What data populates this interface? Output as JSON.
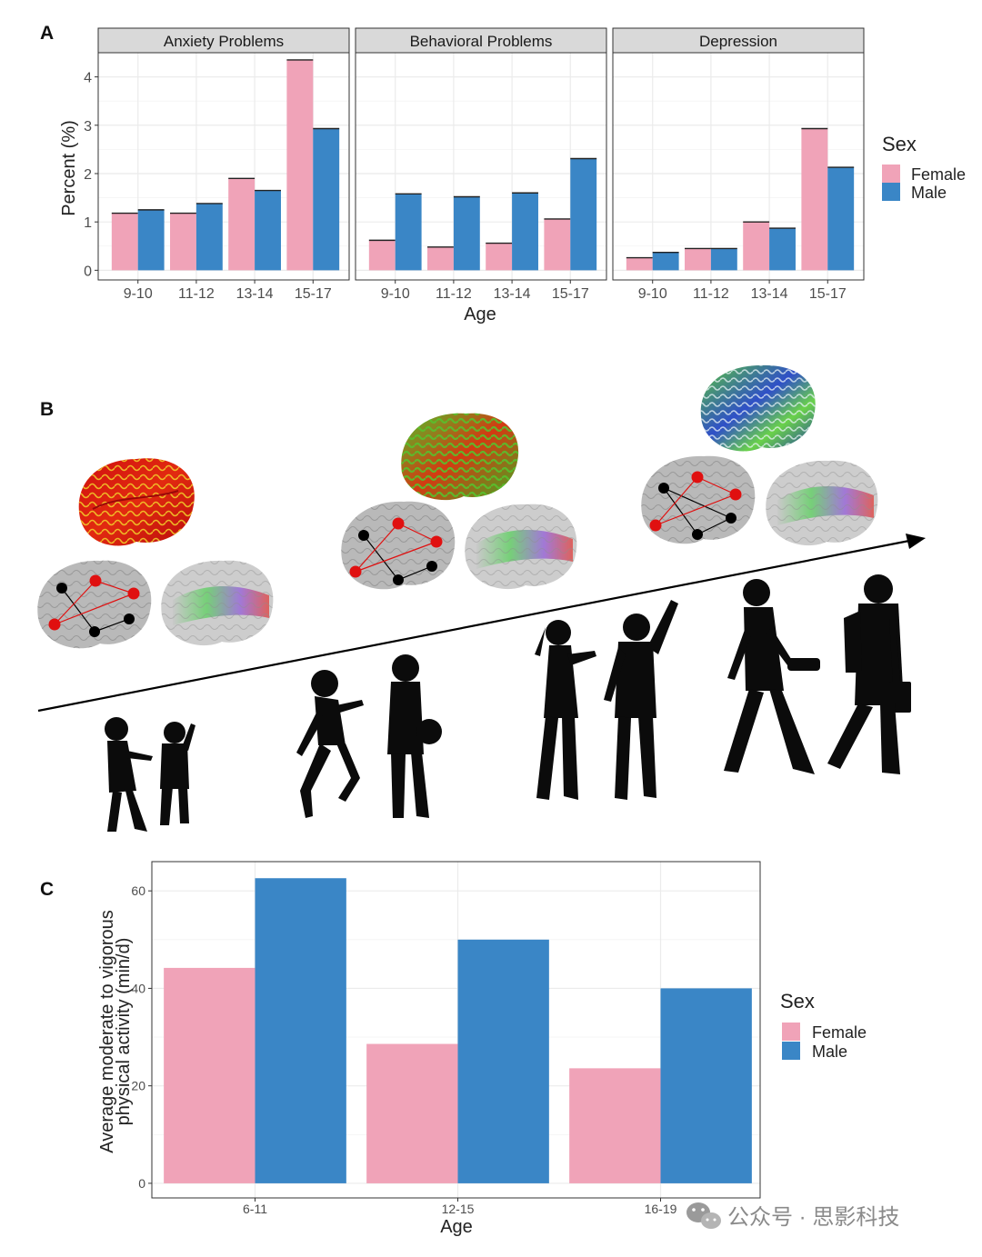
{
  "panels": {
    "a": "A",
    "b": "B",
    "c": "C"
  },
  "colors": {
    "female": "#F0A3B8",
    "male": "#3A86C6",
    "strip_bg": "#D9D9D9",
    "grid": "#EBEBEB"
  },
  "legend": {
    "title": "Sex",
    "female": "Female",
    "male": "Male"
  },
  "panel_b": {
    "timeline": "age progression arrow",
    "brain_surfaces": [
      "red-green cortical surface",
      "green-red cortical surface",
      "blue-green cortical surface"
    ],
    "connectivity_networks": 3,
    "tractography_brains": 3,
    "silhouette_pairs": [
      "child girl and boy",
      "older girl and boy with ball",
      "teen girl and waving boy",
      "young adult woman and man with briefcase"
    ]
  },
  "chart_data": [
    {
      "type": "bar",
      "facets": [
        "Anxiety Problems",
        "Behavioral Problems",
        "Depression"
      ],
      "categories": [
        "9-10",
        "11-12",
        "13-14",
        "15-17"
      ],
      "series_names": [
        "Female",
        "Male"
      ],
      "values": {
        "Anxiety Problems": {
          "Female": [
            1.18,
            1.18,
            1.9,
            4.35
          ],
          "Male": [
            1.25,
            1.38,
            1.65,
            2.93
          ]
        },
        "Behavioral Problems": {
          "Female": [
            0.62,
            0.48,
            0.56,
            1.06
          ],
          "Male": [
            1.58,
            1.52,
            1.6,
            2.31
          ]
        },
        "Depression": {
          "Female": [
            0.26,
            0.45,
            1.0,
            2.93
          ],
          "Male": [
            0.37,
            0.45,
            0.87,
            2.13
          ]
        }
      },
      "xlabel": "Age",
      "ylabel": "Percent (%)",
      "ylim": [
        -0.2,
        4.5
      ],
      "yticks": [
        0,
        1,
        2,
        3,
        4
      ],
      "grid": true,
      "legend": "right"
    },
    {
      "type": "bar",
      "categories": [
        "6-11",
        "12-15",
        "16-19"
      ],
      "series": [
        {
          "name": "Female",
          "values": [
            44.2,
            28.6,
            23.6
          ]
        },
        {
          "name": "Male",
          "values": [
            62.6,
            50.0,
            40.0
          ]
        }
      ],
      "xlabel": "Age",
      "ylabel": "Average moderate to vigorous physical activity (min/d)",
      "ylabel_lines": [
        "Average moderate to vigorous",
        "physical activity (min/d)"
      ],
      "ylim": [
        -3,
        66
      ],
      "yticks": [
        0,
        20,
        40,
        60
      ],
      "grid": true,
      "legend": "right"
    }
  ],
  "watermark": {
    "text": "公众号 · 思影科技",
    "icon": "wechat-icon"
  }
}
